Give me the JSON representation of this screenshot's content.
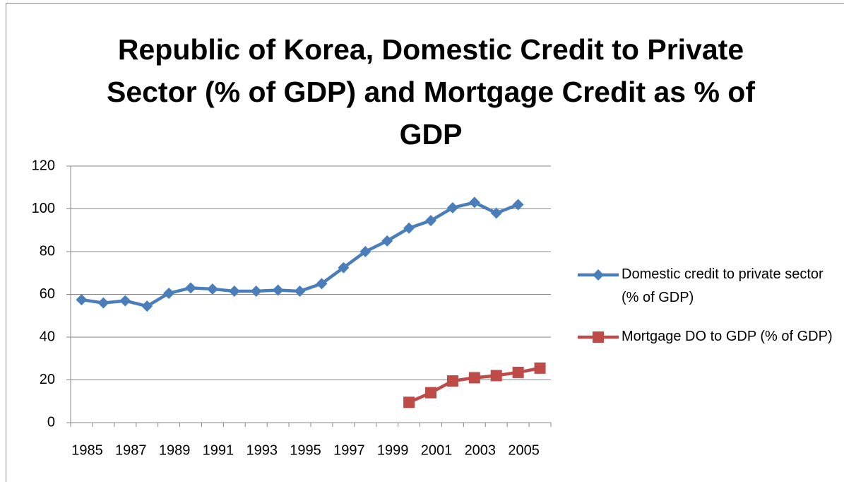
{
  "chart_data": {
    "type": "line",
    "title": "Republic of Korea, Domestic Credit to Private Sector (% of GDP) and Mortgage Credit as % of GDP",
    "categories": [
      "1985",
      null,
      "1987",
      null,
      "1989",
      null,
      "1991",
      null,
      "1993",
      null,
      "1995",
      null,
      "1997",
      null,
      "1999",
      null,
      "2001",
      null,
      "2003",
      null,
      "2005",
      null
    ],
    "series": [
      {
        "name": "Domestic credit to private sector (% of GDP)",
        "color": "#4a7ebb",
        "marker": "diamond",
        "values": [
          57.5,
          56,
          57,
          54.5,
          60.5,
          63,
          62.5,
          61.5,
          61.5,
          62,
          61.5,
          65,
          72.5,
          80,
          85,
          91,
          94.5,
          100.5,
          103,
          98,
          102,
          null
        ]
      },
      {
        "name": "Mortgage DO to GDP (% of GDP)",
        "color": "#be4b48",
        "marker": "square",
        "values": [
          null,
          null,
          null,
          null,
          null,
          null,
          null,
          null,
          null,
          null,
          null,
          null,
          null,
          null,
          null,
          9.5,
          14,
          19.5,
          21,
          22,
          23.5,
          25.5
        ]
      }
    ],
    "ylim": [
      0,
      120
    ],
    "yticks": [
      0,
      20,
      40,
      60,
      80,
      100,
      120
    ],
    "grid": true,
    "legend": "right"
  }
}
